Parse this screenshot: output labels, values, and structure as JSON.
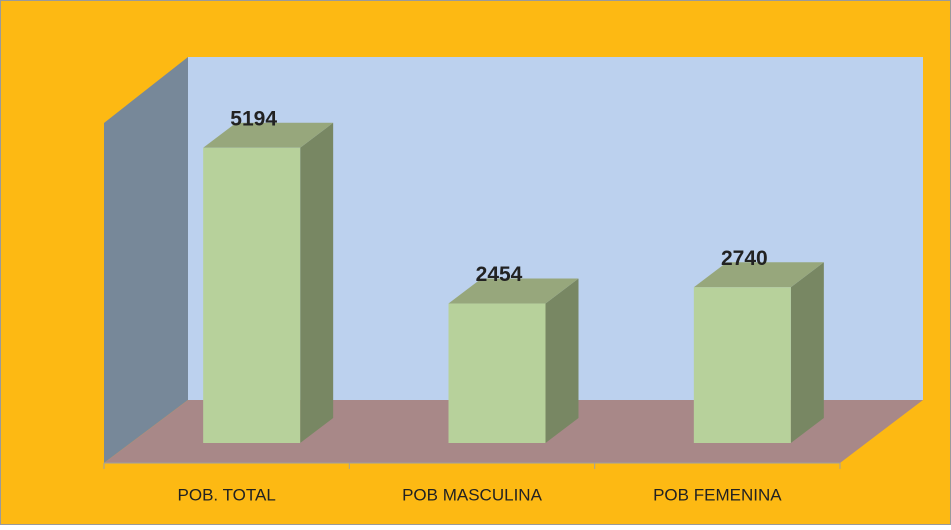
{
  "chart_data": {
    "type": "bar3d",
    "categories": [
      "POB. TOTAL",
      "POB MASCULINA",
      "POB FEMENINA"
    ],
    "values": [
      5194,
      2454,
      2740
    ],
    "color": "#b7d19b",
    "ylim": [
      0,
      6000
    ]
  }
}
